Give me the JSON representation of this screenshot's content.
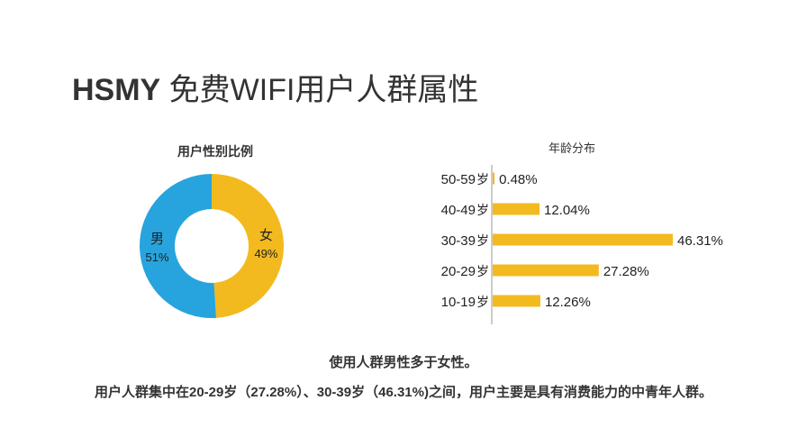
{
  "page": {
    "title_brand": "HSMY",
    "title_rest": " 免费WIFI用户人群属性",
    "summary_line_1": "使用人群男性多于女性。",
    "summary_line_2": "用户人群集中在20-29岁（27.28%）、30-39岁（46.31%)之间，用户主要是具有消费能力的中青年人群。"
  },
  "colors": {
    "male": "#27A4DD",
    "female": "#F3BA1F",
    "text": "#333333",
    "axis": "#999999"
  },
  "chart_data": [
    {
      "type": "pie",
      "title": "用户性别比例",
      "donut": true,
      "slices": [
        {
          "name": "女",
          "value": 49,
          "label": "49%",
          "color": "#F3BA1F"
        },
        {
          "name": "男",
          "value": 51,
          "label": "51%",
          "color": "#27A4DD"
        }
      ]
    },
    {
      "type": "bar",
      "orientation": "horizontal",
      "title": "年龄分布",
      "categories": [
        "50-59岁",
        "40-49岁",
        "30-39岁",
        "20-29岁",
        "10-19岁"
      ],
      "values": [
        0.48,
        12.04,
        46.31,
        27.28,
        12.26
      ],
      "value_labels": [
        "0.48%",
        "12.04%",
        "46.31%",
        "27.28%",
        "12.26%"
      ],
      "xlim": [
        0,
        46.31
      ],
      "grid": false,
      "color": "#F3BA1F"
    }
  ]
}
